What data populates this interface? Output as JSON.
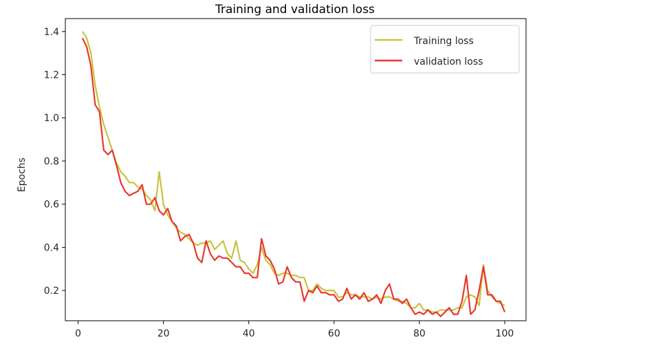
{
  "chart_data": {
    "type": "line",
    "title": "Training and validation loss",
    "xlabel": "",
    "ylabel": "Epochs",
    "xlim": [
      -3,
      105
    ],
    "ylim": [
      0.06,
      1.46
    ],
    "xticks": [
      0,
      20,
      40,
      60,
      80,
      100
    ],
    "yticks": [
      0.2,
      0.4,
      0.6,
      0.8,
      1.0,
      1.2,
      1.4
    ],
    "grid": false,
    "legend_position": "top-right",
    "series": [
      {
        "name": "Training loss",
        "color": "#c8c33c",
        "x": [
          1,
          2,
          3,
          4,
          5,
          6,
          7,
          8,
          9,
          10,
          11,
          12,
          13,
          14,
          15,
          16,
          17,
          18,
          19,
          20,
          21,
          22,
          23,
          24,
          25,
          26,
          27,
          28,
          29,
          30,
          31,
          32,
          33,
          34,
          35,
          36,
          37,
          38,
          39,
          40,
          41,
          42,
          43,
          44,
          45,
          46,
          47,
          48,
          49,
          50,
          51,
          52,
          53,
          54,
          55,
          56,
          57,
          58,
          59,
          60,
          61,
          62,
          63,
          64,
          65,
          66,
          67,
          68,
          69,
          70,
          71,
          72,
          73,
          74,
          75,
          76,
          77,
          78,
          79,
          80,
          81,
          82,
          83,
          84,
          85,
          86,
          87,
          88,
          89,
          90,
          91,
          92,
          93,
          94,
          95,
          96,
          97,
          98,
          99,
          100
        ],
        "values": [
          1.4,
          1.37,
          1.3,
          1.15,
          1.05,
          0.97,
          0.91,
          0.85,
          0.79,
          0.75,
          0.73,
          0.7,
          0.7,
          0.68,
          0.67,
          0.64,
          0.62,
          0.57,
          0.75,
          0.6,
          0.55,
          0.52,
          0.49,
          0.47,
          0.46,
          0.44,
          0.42,
          0.41,
          0.42,
          0.42,
          0.43,
          0.39,
          0.41,
          0.43,
          0.37,
          0.35,
          0.43,
          0.34,
          0.33,
          0.3,
          0.28,
          0.32,
          0.4,
          0.34,
          0.32,
          0.28,
          0.27,
          0.28,
          0.28,
          0.27,
          0.27,
          0.26,
          0.26,
          0.2,
          0.2,
          0.23,
          0.21,
          0.2,
          0.2,
          0.2,
          0.17,
          0.17,
          0.19,
          0.18,
          0.18,
          0.17,
          0.17,
          0.17,
          0.16,
          0.17,
          0.16,
          0.17,
          0.17,
          0.16,
          0.15,
          0.15,
          0.14,
          0.12,
          0.12,
          0.14,
          0.11,
          0.11,
          0.1,
          0.1,
          0.11,
          0.11,
          0.11,
          0.11,
          0.12,
          0.12,
          0.17,
          0.18,
          0.17,
          0.13,
          0.32,
          0.2,
          0.17,
          0.15,
          0.14,
          0.13
        ]
      },
      {
        "name": "validation loss",
        "color": "#e8382c",
        "x": [
          1,
          2,
          3,
          4,
          5,
          6,
          7,
          8,
          9,
          10,
          11,
          12,
          13,
          14,
          15,
          16,
          17,
          18,
          19,
          20,
          21,
          22,
          23,
          24,
          25,
          26,
          27,
          28,
          29,
          30,
          31,
          32,
          33,
          34,
          35,
          36,
          37,
          38,
          39,
          40,
          41,
          42,
          43,
          44,
          45,
          46,
          47,
          48,
          49,
          50,
          51,
          52,
          53,
          54,
          55,
          56,
          57,
          58,
          59,
          60,
          61,
          62,
          63,
          64,
          65,
          66,
          67,
          68,
          69,
          70,
          71,
          72,
          73,
          74,
          75,
          76,
          77,
          78,
          79,
          80,
          81,
          82,
          83,
          84,
          85,
          86,
          87,
          88,
          89,
          90,
          91,
          92,
          93,
          94,
          95,
          96,
          97,
          98,
          99,
          100
        ],
        "values": [
          1.37,
          1.33,
          1.24,
          1.06,
          1.03,
          0.85,
          0.83,
          0.85,
          0.78,
          0.7,
          0.66,
          0.64,
          0.65,
          0.66,
          0.69,
          0.6,
          0.6,
          0.63,
          0.57,
          0.55,
          0.58,
          0.52,
          0.5,
          0.43,
          0.45,
          0.46,
          0.42,
          0.35,
          0.33,
          0.43,
          0.37,
          0.34,
          0.36,
          0.35,
          0.35,
          0.33,
          0.31,
          0.31,
          0.28,
          0.28,
          0.26,
          0.26,
          0.44,
          0.36,
          0.34,
          0.3,
          0.23,
          0.24,
          0.31,
          0.26,
          0.24,
          0.24,
          0.15,
          0.2,
          0.19,
          0.22,
          0.19,
          0.19,
          0.18,
          0.18,
          0.15,
          0.16,
          0.21,
          0.16,
          0.18,
          0.16,
          0.19,
          0.15,
          0.16,
          0.18,
          0.14,
          0.2,
          0.23,
          0.16,
          0.16,
          0.14,
          0.16,
          0.12,
          0.09,
          0.1,
          0.09,
          0.11,
          0.09,
          0.1,
          0.08,
          0.1,
          0.12,
          0.09,
          0.09,
          0.15,
          0.27,
          0.09,
          0.11,
          0.2,
          0.31,
          0.18,
          0.18,
          0.15,
          0.15,
          0.1
        ]
      }
    ]
  }
}
